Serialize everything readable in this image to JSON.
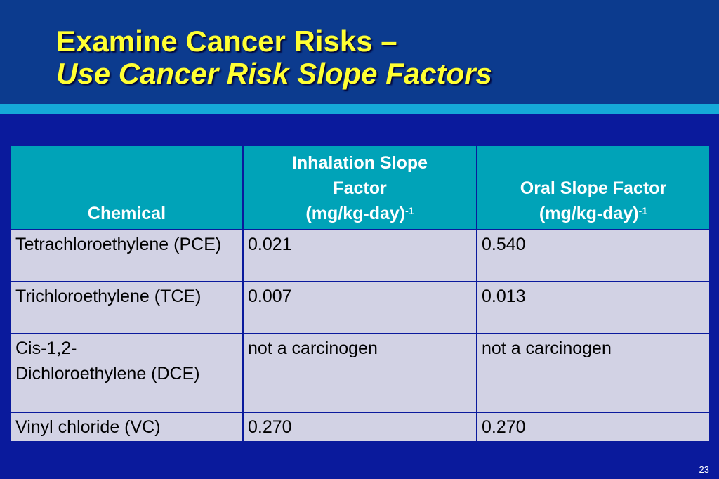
{
  "title": {
    "line1": "Examine Cancer Risks –",
    "line2": "Use Cancer Risk Slope Factors"
  },
  "table": {
    "headers": {
      "chemical": "Chemical",
      "inhalation_line1": "Inhalation Slope",
      "inhalation_line2": "Factor",
      "inhalation_line3": "(mg/kg-day)",
      "oral_line1": "Oral Slope Factor",
      "oral_line2": "(mg/kg-day)",
      "exponent": "-1"
    },
    "rows": [
      {
        "chemical": "Tetrachloroethylene (PCE)",
        "inhalation": "0.021",
        "oral": "0.540"
      },
      {
        "chemical": "Trichloroethylene (TCE)",
        "inhalation": "0.007",
        "oral": "0.013"
      },
      {
        "chemical": "Cis-1,2-Dichloroethylene (DCE)",
        "inhalation": "not a carcinogen",
        "oral": "not a carcinogen"
      },
      {
        "chemical": "Vinyl chloride (VC)",
        "inhalation": "0.270",
        "oral": "0.270"
      }
    ]
  },
  "page_number": "23",
  "colors": {
    "background": "#0a1a9c",
    "header_band": "#0c3b8e",
    "accent_bar": "#15a9d8",
    "title": "#ffff33",
    "table_header": "#00a3b8",
    "table_cell": "#d2d2e4"
  }
}
